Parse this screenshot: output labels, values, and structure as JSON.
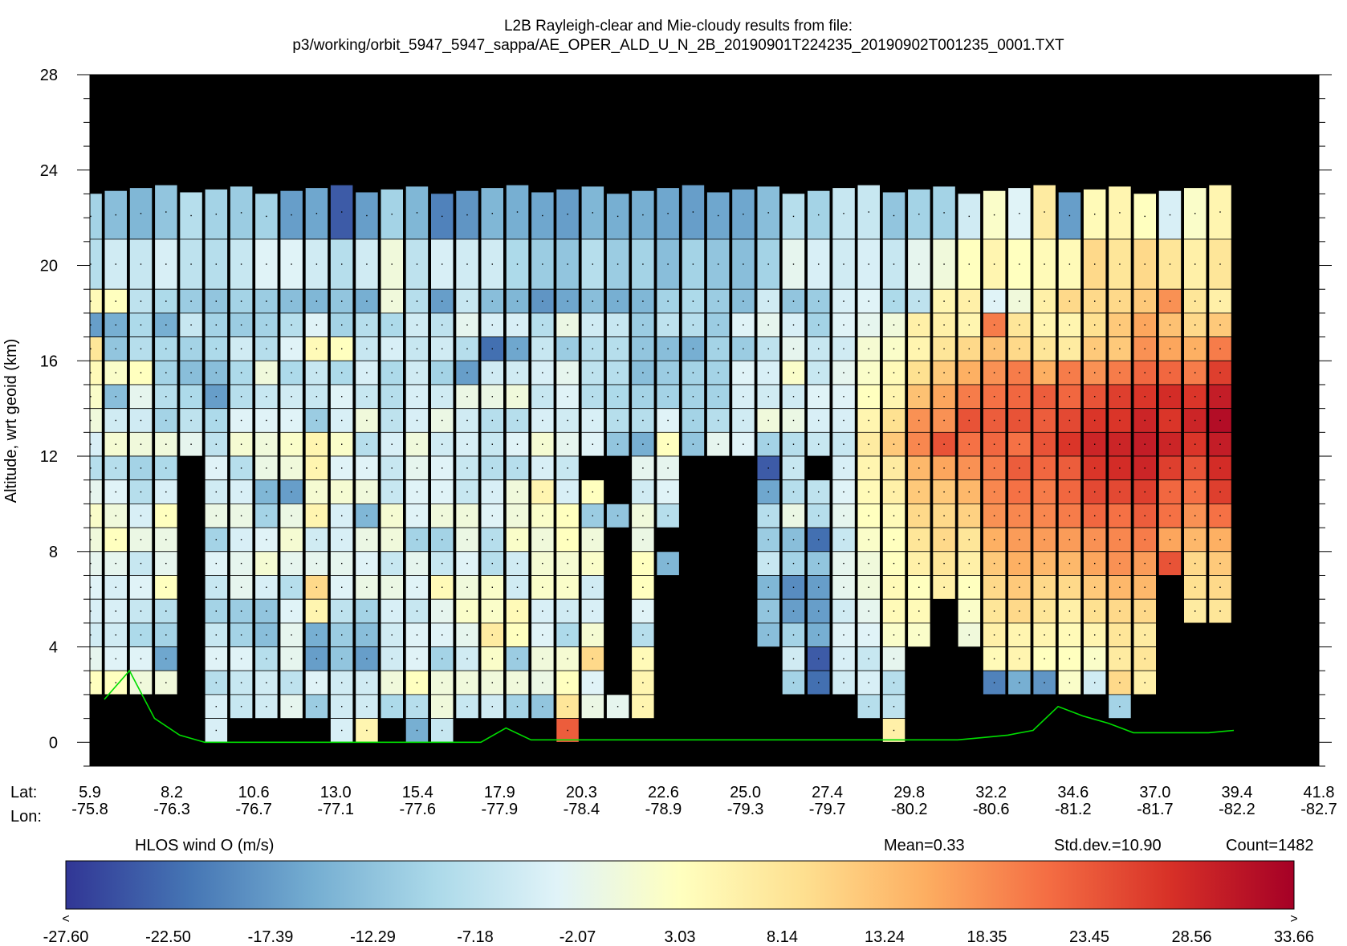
{
  "title_line1": "L2B Rayleigh-clear and Mie-cloudy results from file:",
  "title_line2": "p3/working/orbit_5947_5947_sappa/AE_OPER_ALD_U_N_2B_20190901T224235_20190902T001235_0001.TXT",
  "lat_label": "Lat:",
  "lon_label": "Lon:",
  "colorbar_title": "HLOS wind O (m/s)",
  "stats": {
    "mean": "Mean=0.33",
    "std": "Std.dev.=10.90",
    "count": "Count=1482"
  },
  "colorbar_under": "<",
  "colorbar_over": ">",
  "colorbar_ticks": [
    "-27.60",
    "-22.50",
    "-17.39",
    "-12.29",
    "-7.18",
    "-2.07",
    "3.03",
    "8.14",
    "13.24",
    "18.35",
    "23.45",
    "28.56",
    "33.66"
  ],
  "colors": {
    "background": "#000000",
    "surface_line": "#00dd00",
    "colormap": [
      "#313695",
      "#4575b4",
      "#74add1",
      "#abd9e9",
      "#e0f3f8",
      "#ffffbf",
      "#fee090",
      "#fdae61",
      "#f46d43",
      "#d73027",
      "#a50026"
    ]
  },
  "chart_data": {
    "type": "heatmap",
    "ylabel": "Altitude, wrt geoid (km)",
    "ylim": [
      -1,
      28
    ],
    "yticks": [
      "0",
      "4",
      "8",
      "12",
      "16",
      "20",
      "24",
      "28"
    ],
    "xticks": [
      {
        "lat": "5.9",
        "lon": "-75.8"
      },
      {
        "lat": "8.2",
        "lon": "-76.3"
      },
      {
        "lat": "10.6",
        "lon": "-76.7"
      },
      {
        "lat": "13.0",
        "lon": "-77.1"
      },
      {
        "lat": "15.4",
        "lon": "-77.6"
      },
      {
        "lat": "17.9",
        "lon": "-77.9"
      },
      {
        "lat": "20.3",
        "lon": "-78.4"
      },
      {
        "lat": "22.6",
        "lon": "-78.9"
      },
      {
        "lat": "25.0",
        "lon": "-79.3"
      },
      {
        "lat": "27.4",
        "lon": "-79.7"
      },
      {
        "lat": "29.8",
        "lon": "-80.2"
      },
      {
        "lat": "32.2",
        "lon": "-80.6"
      },
      {
        "lat": "34.6",
        "lon": "-81.2"
      },
      {
        "lat": "37.0",
        "lon": "-81.7"
      },
      {
        "lat": "39.4",
        "lon": "-82.2"
      },
      {
        "lat": "41.8",
        "lon": "-82.7"
      }
    ],
    "value_range": [
      -27.6,
      33.66
    ],
    "n_profiles": 46,
    "level_edges_km": [
      23.2,
      21.1,
      19.0,
      18.0,
      17.0,
      16.0,
      15.0,
      14.0,
      13.0,
      12.0,
      11.0,
      10.0,
      9.0,
      8.0,
      7.0,
      6.0,
      5.0,
      4.0,
      3.0,
      2.0,
      1.0,
      0.0
    ],
    "profile_values_top_to_bottom": [
      [
        -10,
        -8,
        4,
        -17,
        8,
        4,
        2,
        0,
        -4,
        -8,
        -2,
        2,
        0,
        -2,
        -3,
        -4,
        -5,
        -2,
        3,
        null,
        null
      ],
      [
        -13,
        -5,
        3,
        -15,
        -12,
        2,
        -13,
        -5,
        1,
        -8,
        -3,
        0,
        3,
        -2,
        -4,
        -4,
        -5,
        -3,
        3,
        null,
        null
      ],
      [
        -14,
        -6,
        -7,
        -9,
        -8,
        3,
        -2,
        -5,
        0,
        -10,
        -8,
        -4,
        -1,
        -6,
        -3,
        -6,
        -9,
        -3,
        0,
        null,
        null
      ],
      [
        -12,
        -4,
        -9,
        -15,
        -9,
        -10,
        -8,
        -10,
        0,
        -9,
        -4,
        3,
        -1,
        -2,
        3,
        -8,
        -10,
        -16,
        0,
        null,
        null
      ],
      [
        -8,
        -7,
        -11,
        -6,
        -10,
        -13,
        -9,
        -7,
        -2,
        null,
        null,
        null,
        null,
        null,
        null,
        null,
        null,
        null,
        null,
        null,
        null
      ],
      [
        -10,
        -8,
        -12,
        -10,
        -9,
        -13,
        -17,
        -9,
        -7,
        -3,
        -5,
        -1,
        -10,
        -3,
        -6,
        -10,
        -6,
        -3,
        -8,
        -4,
        -4
      ],
      [
        -11,
        -6,
        -10,
        -11,
        -5,
        -9,
        -8,
        -3,
        1,
        -8,
        -4,
        -1,
        -4,
        -2,
        -2,
        -11,
        -10,
        -3,
        -6,
        -6,
        null
      ],
      [
        -10,
        -3,
        -11,
        -10,
        -8,
        0,
        -6,
        -3,
        0,
        -1,
        -14,
        -10,
        -3,
        1,
        -4,
        -12,
        -13,
        -8,
        -5,
        -5,
        null
      ],
      [
        -17,
        -3,
        -13,
        -8,
        -3,
        -9,
        -5,
        -3,
        2,
        0,
        -17,
        -1,
        1,
        -2,
        -8,
        -3,
        -2,
        -2,
        -7,
        -2,
        null
      ],
      [
        -16,
        -5,
        -14,
        -3,
        4,
        -6,
        -6,
        -11,
        5,
        5,
        1,
        5,
        -5,
        -2,
        10,
        5,
        -15,
        -17,
        -3,
        -11,
        null
      ],
      [
        -24,
        -8,
        -12,
        -10,
        3,
        -9,
        -3,
        -4,
        2,
        -3,
        1,
        -4,
        -4,
        -2,
        -3,
        -7,
        -11,
        -12,
        -5,
        -5,
        -4
      ],
      [
        -17,
        -5,
        -15,
        -8,
        -6,
        -4,
        -6,
        0,
        -8,
        -3,
        0,
        -14,
        -1,
        -3,
        -1,
        -10,
        -13,
        -17,
        -5,
        -5,
        5
      ],
      [
        -10,
        0,
        0,
        -9,
        -4,
        -9,
        -8,
        -7,
        -4,
        -6,
        -6,
        1,
        0,
        -6,
        -1,
        -4,
        -5,
        -5,
        0,
        -9,
        null
      ],
      [
        -14,
        -7,
        -8,
        -5,
        -6,
        -5,
        -4,
        -4,
        0,
        -2,
        -3,
        -3,
        -10,
        -2,
        -3,
        -6,
        -3,
        -3,
        3,
        -8,
        -15
      ],
      [
        -20,
        -4,
        -17,
        -7,
        -5,
        -10,
        -5,
        -1,
        -5,
        -3,
        -3,
        0,
        -10,
        -6,
        4,
        -2,
        -3,
        -10,
        0,
        0,
        -6
      ],
      [
        -18,
        -5,
        -6,
        -2,
        -8,
        -17,
        -1,
        -5,
        -4,
        -6,
        -6,
        0,
        -1,
        -3,
        0,
        2,
        -2,
        -5,
        0,
        -6,
        null
      ],
      [
        -14,
        -5,
        -13,
        -4,
        -22,
        -5,
        -1,
        -8,
        -6,
        -8,
        -4,
        -3,
        -8,
        -8,
        2,
        2,
        7,
        2,
        0,
        -5,
        null
      ],
      [
        -15,
        -9,
        -14,
        -4,
        -16,
        -5,
        0,
        -8,
        -3,
        -8,
        0,
        0,
        2,
        -5,
        -5,
        4,
        3,
        -11,
        0,
        -10,
        null
      ],
      [
        -16,
        -11,
        -18,
        -8,
        -6,
        -4,
        -6,
        -4,
        1,
        -4,
        5,
        2,
        0,
        1,
        2,
        -4,
        -3,
        0,
        -1,
        -12,
        null
      ],
      [
        -17,
        -12,
        -16,
        -1,
        -11,
        -2,
        -3,
        -5,
        -2,
        -6,
        -4,
        3,
        3,
        1,
        2,
        -5,
        -9,
        1,
        3,
        8,
        23
      ],
      [
        -14,
        -8,
        -13,
        -5,
        -8,
        -7,
        -8,
        -4,
        -3,
        null,
        3,
        -11,
        0,
        2,
        -5,
        -4,
        1,
        10,
        -3,
        -1,
        null
      ],
      [
        -15,
        -11,
        -15,
        -6,
        -8,
        -8,
        -9,
        -8,
        -12,
        null,
        null,
        -12,
        null,
        null,
        null,
        null,
        null,
        null,
        null,
        -2,
        null
      ],
      [
        -15,
        -10,
        -14,
        -11,
        -12,
        -13,
        -10,
        -8,
        -15,
        -2,
        -5,
        0,
        -1,
        3,
        3,
        -3,
        -8,
        4,
        5,
        5,
        null
      ],
      [
        -16,
        -13,
        -10,
        -7,
        -13,
        -11,
        -10,
        -3,
        3,
        -2,
        -3,
        -8,
        null,
        -14,
        null,
        null,
        null,
        null,
        null,
        null,
        null
      ],
      [
        -17,
        -10,
        -9,
        -8,
        -15,
        -10,
        -10,
        -10,
        -12,
        null,
        null,
        null,
        null,
        null,
        null,
        null,
        null,
        null,
        null,
        null,
        null
      ],
      [
        -16,
        -12,
        -11,
        -11,
        -10,
        -10,
        -10,
        -8,
        -2,
        null,
        null,
        null,
        null,
        null,
        null,
        null,
        null,
        null,
        null,
        null,
        null
      ],
      [
        -16,
        -13,
        -13,
        -3,
        -11,
        -3,
        -4,
        -5,
        -3,
        null,
        null,
        null,
        null,
        null,
        null,
        null,
        null,
        null,
        null,
        null,
        null
      ],
      [
        -13,
        -10,
        -5,
        -2,
        -7,
        -4,
        -5,
        0,
        -10,
        -24,
        -16,
        -8,
        -11,
        -6,
        -14,
        -12,
        -13,
        null,
        null,
        null,
        null
      ],
      [
        -8,
        -2,
        -12,
        -4,
        -2,
        2,
        -5,
        -1,
        -8,
        -6,
        -8,
        -1,
        -13,
        -10,
        -19,
        -17,
        -10,
        -5,
        -10,
        null,
        null
      ],
      [
        -10,
        -4,
        -11,
        -10,
        -6,
        -6,
        -3,
        -4,
        -6,
        null,
        -7,
        -8,
        -22,
        -12,
        -17,
        -17,
        -15,
        -24,
        -22,
        null,
        null
      ],
      [
        -6,
        -5,
        -4,
        -3,
        -5,
        -2,
        -3,
        -4,
        -6,
        -4,
        -3,
        -2,
        -6,
        -2,
        -2,
        -5,
        -3,
        -4,
        -5,
        null,
        null
      ],
      [
        -6,
        -4,
        -3,
        -2,
        1,
        2,
        3,
        5,
        7,
        5,
        4,
        3,
        2,
        0,
        0,
        -2,
        -3,
        -6,
        -4,
        -8,
        null
      ],
      [
        -12,
        -6,
        -9,
        0,
        2,
        4,
        5,
        9,
        12,
        7,
        6,
        4,
        3,
        3,
        4,
        4,
        2,
        -2,
        -8,
        -7,
        6
      ],
      [
        -10,
        -2,
        -7,
        6,
        5,
        9,
        13,
        18,
        19,
        14,
        12,
        10,
        8,
        6,
        3,
        4,
        2,
        null,
        null,
        null,
        null
      ],
      [
        -10,
        0,
        5,
        6,
        8,
        12,
        16,
        18,
        24,
        16,
        12,
        10,
        10,
        8,
        6,
        null,
        null,
        null,
        null,
        null,
        null
      ],
      [
        -5,
        3,
        6,
        5,
        10,
        15,
        20,
        24,
        21,
        18,
        14,
        11,
        8,
        6,
        3,
        2,
        0,
        null,
        null,
        null,
        null
      ],
      [
        2,
        5,
        -3,
        20,
        13,
        18,
        21,
        23,
        22,
        20,
        19,
        18,
        15,
        12,
        10,
        8,
        6,
        4,
        -20,
        null,
        null
      ],
      [
        -3,
        3,
        0,
        8,
        10,
        20,
        22,
        24,
        21,
        23,
        21,
        19,
        17,
        15,
        12,
        10,
        5,
        5,
        -15,
        null,
        null
      ],
      [
        7,
        4,
        6,
        5,
        8,
        15,
        23,
        23,
        24,
        22,
        20,
        19,
        17,
        14,
        10,
        8,
        5,
        3,
        -18,
        null,
        null
      ],
      [
        -17,
        4,
        10,
        5,
        7,
        20,
        22,
        25,
        27,
        23,
        22,
        20,
        17,
        14,
        10,
        6,
        4,
        3,
        2,
        null,
        null
      ],
      [
        4,
        10,
        10,
        9,
        12,
        18,
        24,
        27,
        29,
        27,
        25,
        22,
        18,
        16,
        12,
        9,
        5,
        2,
        -5,
        null,
        null
      ],
      [
        5,
        8,
        10,
        12,
        12,
        20,
        26,
        27,
        29,
        28,
        25,
        21,
        19,
        18,
        14,
        10,
        8,
        7,
        10,
        -10,
        null
      ],
      [
        3,
        10,
        12,
        16,
        18,
        22,
        27,
        29,
        30,
        29,
        26,
        23,
        20,
        17,
        14,
        10,
        7,
        8,
        6,
        null,
        null
      ],
      [
        -4,
        8,
        18,
        13,
        16,
        22,
        28,
        27,
        29,
        26,
        22,
        21,
        16,
        24,
        null,
        null,
        null,
        null,
        null,
        null,
        null
      ],
      [
        2,
        6,
        8,
        10,
        15,
        20,
        27,
        29,
        27,
        24,
        21,
        18,
        14,
        10,
        9,
        7,
        null,
        null,
        null,
        null,
        null
      ],
      [
        5,
        8,
        6,
        12,
        20,
        26,
        30,
        32,
        30,
        28,
        26,
        21,
        15,
        12,
        10,
        8,
        null,
        null,
        null,
        null,
        null
      ]
    ],
    "surface_track_km": [
      1.8,
      3.0,
      1.0,
      0.3,
      0.0,
      0.0,
      0.0,
      0.0,
      0.0,
      0.0,
      0.0,
      0.0,
      0.0,
      0.0,
      0.0,
      0.0,
      0.6,
      0.1,
      0.1,
      0.1,
      0.1,
      0.1,
      0.1,
      0.1,
      0.1,
      0.1,
      0.1,
      0.1,
      0.1,
      0.1,
      0.1,
      0.1,
      0.1,
      0.1,
      0.1,
      0.2,
      0.3,
      0.5,
      1.5,
      1.1,
      0.8,
      0.4,
      0.4,
      0.4,
      0.4,
      0.5
    ]
  }
}
